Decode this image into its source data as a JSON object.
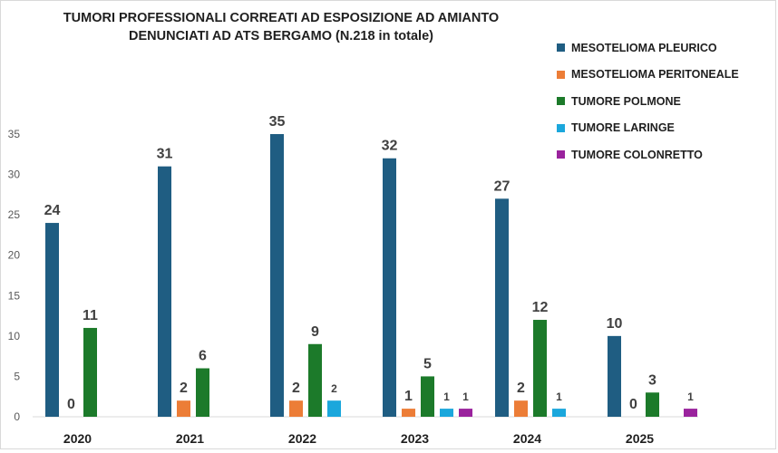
{
  "chart_data": {
    "type": "bar",
    "title_lines": [
      "TUMORI PROFESSIONALI CORREATI AD ESPOSIZIONE AD AMIANTO",
      "DENUNCIATI AD ATS BERGAMO (N.218 in totale)"
    ],
    "categories": [
      "2020",
      "2021",
      "2022",
      "2023",
      "2024",
      "2025"
    ],
    "ylim": [
      0,
      35
    ],
    "yticks": [
      0,
      5,
      10,
      15,
      20,
      25,
      30,
      35
    ],
    "grid": false,
    "legend_position": "top-right",
    "series": [
      {
        "name": "MESOTELIOMA PLEURICO",
        "color": "#1f5d82",
        "values": [
          24,
          31,
          35,
          32,
          27,
          10
        ],
        "labels": [
          "24",
          "31",
          "35",
          "32",
          "27",
          "10"
        ]
      },
      {
        "name": "MESOTELIOMA PERITONEALE",
        "color": "#ec7d37",
        "values": [
          0,
          2,
          2,
          1,
          2,
          0
        ],
        "labels": [
          "0",
          "2",
          "2",
          "1",
          "2",
          "0"
        ]
      },
      {
        "name": "TUMORE POLMONE",
        "color": "#1c7a2a",
        "values": [
          11,
          6,
          9,
          5,
          12,
          3
        ],
        "labels": [
          "11",
          "6",
          "9",
          "5",
          "12",
          "3"
        ]
      },
      {
        "name": "TUMORE LARINGE",
        "color": "#1ba7dc",
        "values": [
          null,
          null,
          2,
          1,
          1,
          null
        ],
        "labels": [
          null,
          null,
          "2",
          "1",
          "1",
          null
        ]
      },
      {
        "name": "TUMORE COLONRETTO",
        "color": "#9a239d",
        "values": [
          null,
          null,
          null,
          1,
          null,
          1
        ],
        "labels": [
          null,
          null,
          null,
          "1",
          null,
          "1"
        ]
      }
    ]
  }
}
